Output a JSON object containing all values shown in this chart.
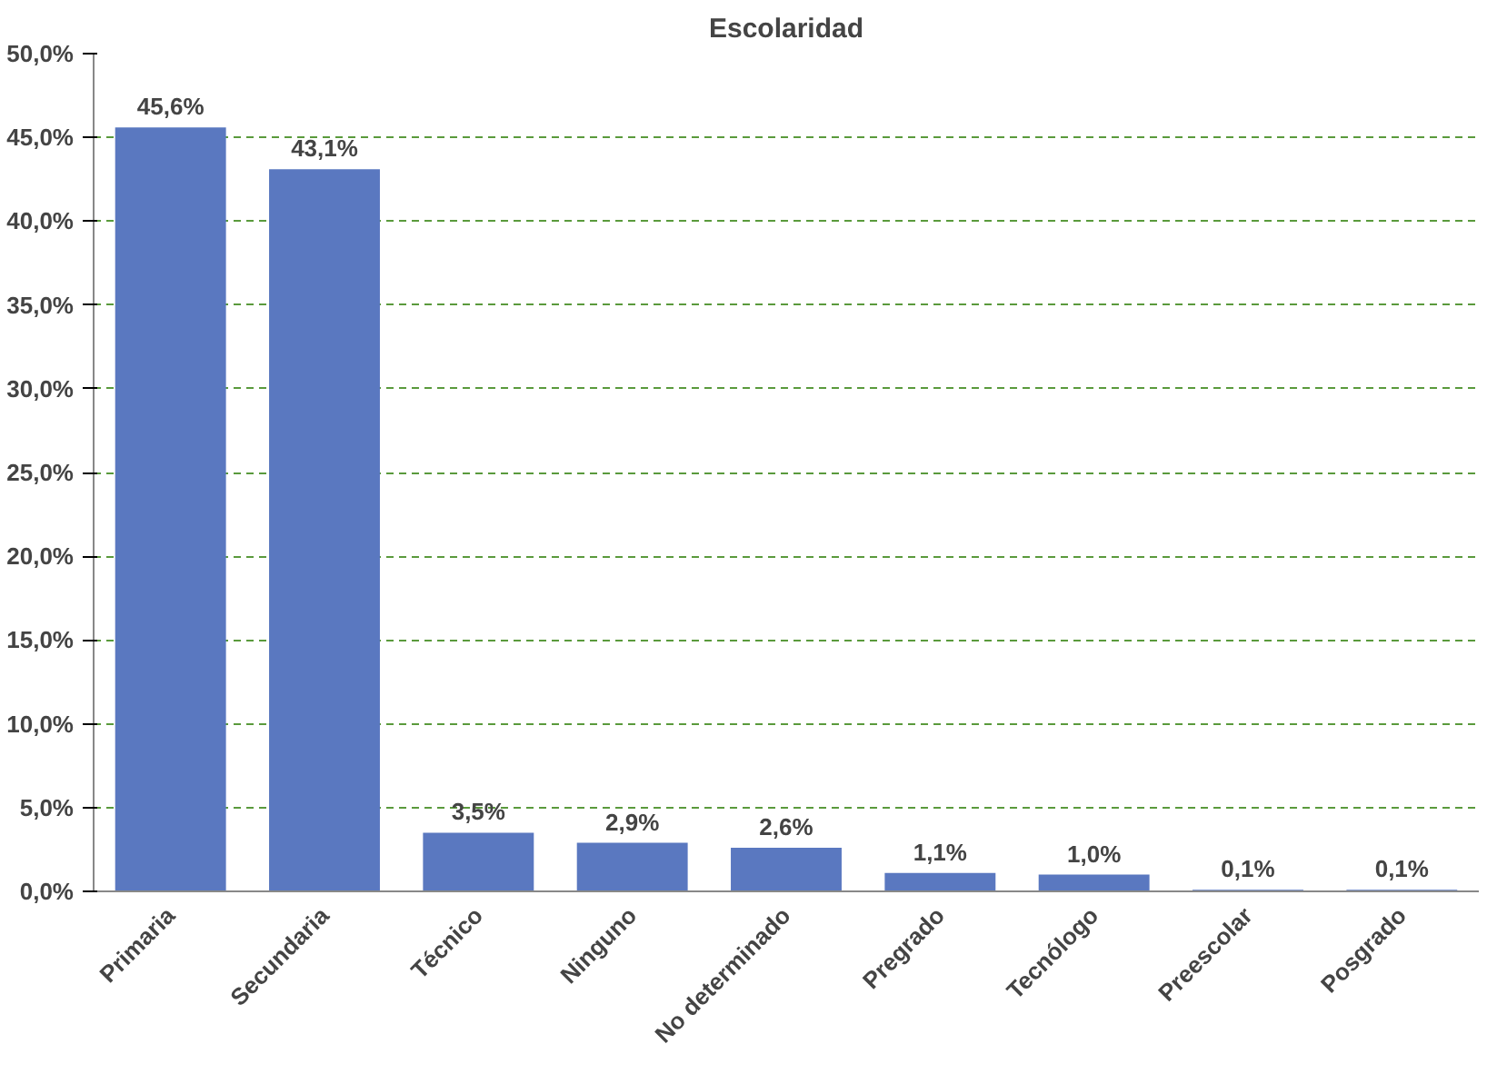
{
  "chart_data": {
    "type": "bar",
    "title": "Escolaridad",
    "categories": [
      "Primaria",
      "Secundaria",
      "Técnico",
      "Ninguno",
      "No determinado",
      "Pregrado",
      "Tecnólogo",
      "Preescolar",
      "Posgrado"
    ],
    "values": [
      45.6,
      43.1,
      3.5,
      2.9,
      2.6,
      1.1,
      1.0,
      0.1,
      0.1
    ],
    "value_labels": [
      "45,6%",
      "43,1%",
      "3,5%",
      "2,9%",
      "2,6%",
      "1,1%",
      "1,0%",
      "0,1%",
      "0,1%"
    ],
    "color": "#5a78c0",
    "ylim": [
      0,
      50
    ],
    "yticks": [
      {
        "value": 0,
        "label": "0,0%"
      },
      {
        "value": 5,
        "label": "5,0%"
      },
      {
        "value": 10,
        "label": "10,0%"
      },
      {
        "value": 15,
        "label": "15,0%"
      },
      {
        "value": 20,
        "label": "20,0%"
      },
      {
        "value": 25,
        "label": "25,0%"
      },
      {
        "value": 30,
        "label": "30,0%"
      },
      {
        "value": 35,
        "label": "35,0%"
      },
      {
        "value": 40,
        "label": "40,0%"
      },
      {
        "value": 45,
        "label": "45,0%"
      },
      {
        "value": 50,
        "label": "50,0%"
      }
    ],
    "grid": "y"
  }
}
